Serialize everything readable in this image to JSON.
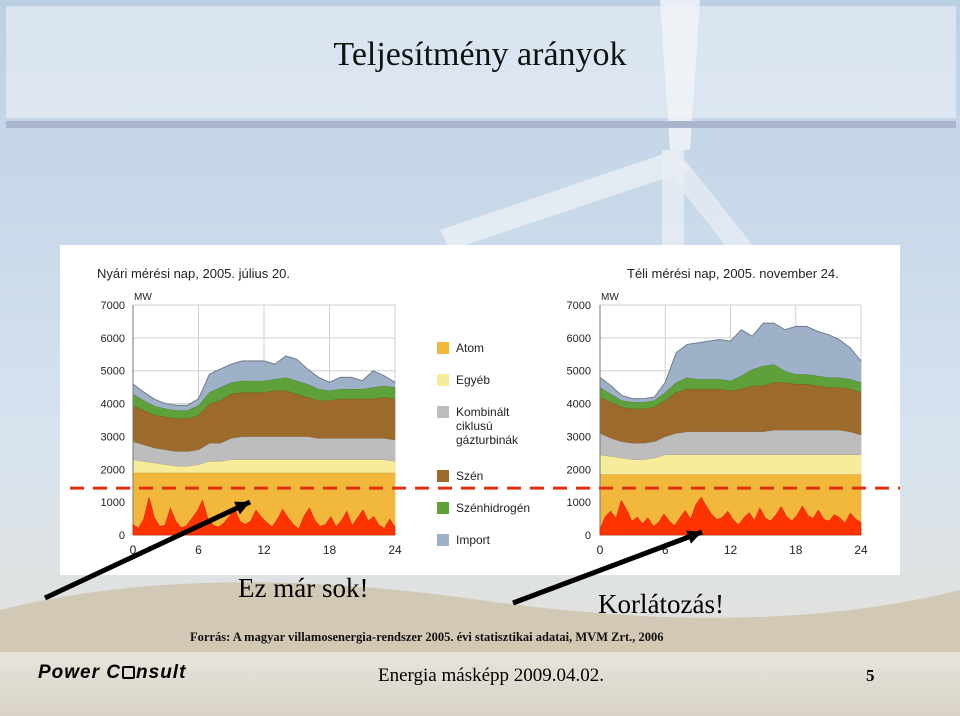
{
  "slide": {
    "title": "Teljesítmény arányok",
    "note_left": "Ez már sok!",
    "note_right": "Korlátozás!",
    "source": "Forrás: A magyar villamosenergia-rendszer 2005. évi statisztikai adatai, MVM Zrt., 2006",
    "footer_text": "Energia másképp 2009.04.02.",
    "page_number": "5",
    "logo": {
      "part1": "Power C",
      "part2": "nsult"
    }
  },
  "chart_data": [
    {
      "type": "area",
      "stacked": true,
      "title": "Nyári mérési nap, 2005. július 20.",
      "ylabel": "MW",
      "x": [
        0,
        1,
        2,
        3,
        4,
        5,
        6,
        7,
        8,
        9,
        10,
        11,
        12,
        13,
        14,
        15,
        16,
        17,
        18,
        19,
        20,
        21,
        22,
        23,
        24
      ],
      "xticks": [
        0,
        6,
        12,
        18,
        24
      ],
      "yticks": [
        0,
        1000,
        2000,
        3000,
        4000,
        5000,
        6000,
        7000
      ],
      "ylim": [
        0,
        7000
      ],
      "xlim": [
        0,
        24
      ],
      "grid": true,
      "series": [
        {
          "name": "Atom",
          "color": "#f2b83b",
          "values": [
            1900,
            1900,
            1900,
            1900,
            1900,
            1900,
            1900,
            1900,
            1900,
            1900,
            1900,
            1900,
            1900,
            1900,
            1900,
            1900,
            1900,
            1900,
            1900,
            1900,
            1900,
            1900,
            1900,
            1900,
            1900
          ]
        },
        {
          "name": "Egyéb",
          "color": "#f6ec9a",
          "values": [
            400,
            350,
            300,
            250,
            200,
            200,
            250,
            350,
            350,
            400,
            400,
            400,
            400,
            400,
            400,
            400,
            400,
            400,
            400,
            400,
            400,
            400,
            400,
            400,
            350
          ]
        },
        {
          "name": "Kombinált ciklusú gázturbinák",
          "color": "#bdbdbd",
          "values": [
            550,
            500,
            450,
            450,
            450,
            450,
            450,
            550,
            550,
            650,
            700,
            700,
            700,
            700,
            700,
            700,
            700,
            650,
            650,
            650,
            650,
            650,
            650,
            650,
            650
          ]
        },
        {
          "name": "Szén",
          "color": "#9c6a2a",
          "values": [
            1100,
            1050,
            1000,
            1000,
            1000,
            1000,
            1050,
            1200,
            1300,
            1350,
            1350,
            1350,
            1350,
            1400,
            1400,
            1300,
            1200,
            1150,
            1150,
            1200,
            1200,
            1200,
            1200,
            1250,
            1250
          ]
        },
        {
          "name": "Szénhidrogén",
          "color": "#5ea03a",
          "values": [
            350,
            300,
            280,
            250,
            250,
            250,
            300,
            350,
            400,
            350,
            350,
            350,
            350,
            350,
            400,
            400,
            400,
            350,
            300,
            300,
            300,
            300,
            350,
            350,
            350
          ]
        },
        {
          "name": "Import",
          "color": "#9fb1c8",
          "values": [
            300,
            250,
            200,
            150,
            150,
            150,
            200,
            550,
            550,
            550,
            600,
            600,
            600,
            450,
            650,
            650,
            450,
            350,
            250,
            350,
            350,
            250,
            500,
            300,
            150
          ]
        }
      ],
      "limit_line": 1000
    },
    {
      "type": "area",
      "stacked": true,
      "title": "Téli mérési nap, 2005. november 24.",
      "ylabel": "MW",
      "x": [
        0,
        1,
        2,
        3,
        4,
        5,
        6,
        7,
        8,
        9,
        10,
        11,
        12,
        13,
        14,
        15,
        16,
        17,
        18,
        19,
        20,
        21,
        22,
        23,
        24
      ],
      "xticks": [
        0,
        6,
        12,
        18,
        24
      ],
      "yticks": [
        0,
        1000,
        2000,
        3000,
        4000,
        5000,
        6000,
        7000
      ],
      "ylim": [
        0,
        7000
      ],
      "xlim": [
        0,
        24
      ],
      "grid": true,
      "series": [
        {
          "name": "Atom",
          "color": "#f2b83b",
          "values": [
            1850,
            1850,
            1850,
            1850,
            1850,
            1850,
            1850,
            1850,
            1850,
            1850,
            1850,
            1850,
            1850,
            1850,
            1850,
            1850,
            1850,
            1850,
            1850,
            1850,
            1850,
            1850,
            1850,
            1850,
            1850
          ]
        },
        {
          "name": "Egyéb",
          "color": "#f6ec9a",
          "values": [
            600,
            550,
            500,
            450,
            450,
            500,
            600,
            600,
            600,
            600,
            600,
            600,
            600,
            600,
            600,
            600,
            600,
            600,
            600,
            600,
            600,
            600,
            600,
            600,
            600
          ]
        },
        {
          "name": "Kombinált ciklusú gázturbinák",
          "color": "#bdbdbd",
          "values": [
            650,
            550,
            500,
            500,
            500,
            500,
            550,
            650,
            700,
            700,
            700,
            700,
            700,
            700,
            700,
            700,
            750,
            750,
            750,
            750,
            750,
            750,
            750,
            700,
            600
          ]
        },
        {
          "name": "Szén",
          "color": "#9c6a2a",
          "values": [
            1100,
            1100,
            1050,
            1050,
            1050,
            1050,
            1100,
            1250,
            1300,
            1300,
            1300,
            1300,
            1250,
            1300,
            1400,
            1400,
            1450,
            1450,
            1400,
            1400,
            1350,
            1300,
            1300,
            1300,
            1300
          ]
        },
        {
          "name": "Szénhidrogén",
          "color": "#5ea03a",
          "values": [
            300,
            250,
            200,
            200,
            200,
            200,
            250,
            300,
            350,
            300,
            300,
            300,
            300,
            400,
            500,
            600,
            550,
            350,
            300,
            300,
            300,
            300,
            300,
            300,
            300
          ]
        },
        {
          "name": "Import",
          "color": "#9fb1c8",
          "values": [
            300,
            250,
            150,
            100,
            100,
            100,
            300,
            900,
            1000,
            1100,
            1150,
            1200,
            1200,
            1400,
            1000,
            1300,
            1250,
            1250,
            1450,
            1450,
            1350,
            1300,
            1150,
            950,
            650
          ]
        }
      ],
      "limit_line": 1000
    }
  ],
  "legend": [
    {
      "name": "Atom",
      "color": "#f2b83b"
    },
    {
      "name": "Egyéb",
      "color": "#f6ec9a"
    },
    {
      "name": "Kombinált ciklusú gázturbinák",
      "lines": [
        "Kombinált",
        "ciklusú",
        "gázturbinák"
      ],
      "color": "#bdbdbd"
    },
    {
      "name": "Szén",
      "color": "#9c6a2a"
    },
    {
      "name": "Szénhidrogén",
      "color": "#5ea03a"
    },
    {
      "name": "Import",
      "color": "#9fb1c8"
    }
  ],
  "wind_fluctuation": {
    "color": "#ff3300",
    "summer": [
      320,
      200,
      480,
      1150,
      520,
      260,
      300,
      820,
      420,
      220,
      280,
      500,
      720,
      1060,
      500,
      300,
      240,
      360,
      560,
      800,
      420,
      320,
      420,
      760,
      540,
      380,
      240,
      480,
      780,
      520,
      320,
      180,
      580,
      820,
      440,
      260,
      320,
      560,
      240,
      440,
      720,
      280,
      520,
      760,
      420,
      560,
      300,
      200,
      480,
      240
    ],
    "winter": [
      180,
      560,
      720,
      500,
      1050,
      760,
      420,
      540,
      340,
      520,
      260,
      380,
      640,
      420,
      280,
      520,
      740,
      480,
      920,
      1150,
      860,
      620,
      460,
      540,
      720,
      460,
      300,
      520,
      680,
      440,
      820,
      520,
      420,
      600,
      860,
      560,
      420,
      600,
      880,
      600,
      500,
      760,
      480,
      420,
      620,
      520,
      360,
      660,
      480,
      380
    ]
  }
}
